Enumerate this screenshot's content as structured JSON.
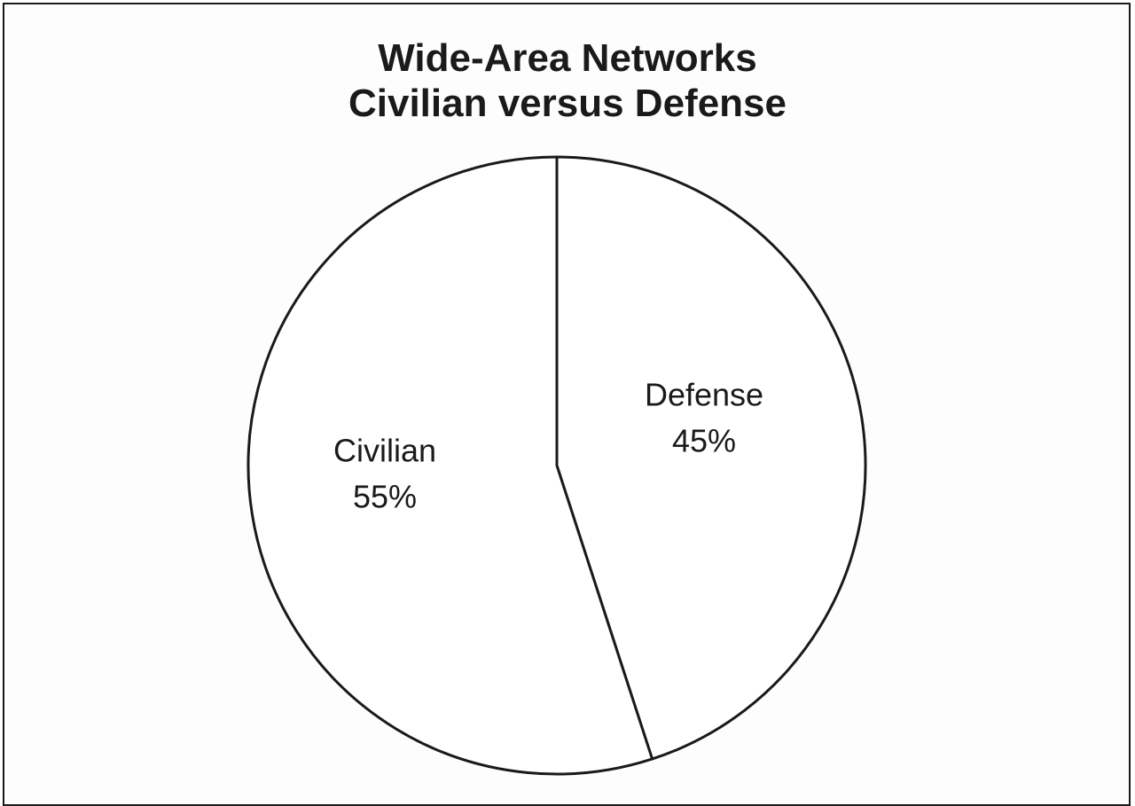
{
  "chart_data": {
    "type": "pie",
    "title": "Wide-Area Networks",
    "subtitle": "Civilian versus Defense",
    "slices": [
      {
        "label": "Defense",
        "value": 45,
        "value_label": "45%"
      },
      {
        "label": "Civilian",
        "value": 55,
        "value_label": "55%"
      }
    ],
    "start_angle_deg": 0,
    "direction": "clockwise",
    "fill_color": "#ffffff",
    "stroke_color": "#1a1a1a"
  }
}
